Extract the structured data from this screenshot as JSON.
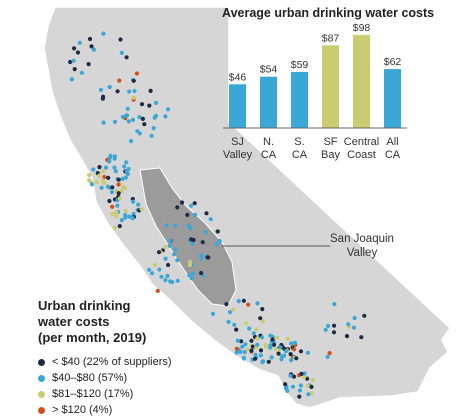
{
  "map": {
    "region": "California",
    "callout_lines": [
      "San Joaquin",
      "Valley"
    ]
  },
  "legend": {
    "title_lines": [
      "Urban drinking",
      "water costs",
      "(per month, 2019)"
    ],
    "items": [
      {
        "label": "< $40 (22% of suppliers)",
        "color": "#1f2a44"
      },
      {
        "label": "$40–$80 (57%)",
        "color": "#3aa7d6"
      },
      {
        "label": "$81–$120 (17%)",
        "color": "#c9cc6f"
      },
      {
        "label": "> $120 (4%)",
        "color": "#cf4f1f"
      }
    ]
  },
  "chart_data": {
    "type": "bar",
    "title": "Average urban drinking water costs",
    "categories": [
      [
        "SJ",
        "Valley"
      ],
      [
        "N.",
        "CA"
      ],
      [
        "S.",
        "CA"
      ],
      [
        "SF",
        "Bay"
      ],
      [
        "Central",
        "Coast"
      ],
      [
        "All",
        "CA"
      ]
    ],
    "values": [
      46,
      54,
      59,
      87,
      98,
      62
    ],
    "value_labels": [
      "$46",
      "$54",
      "$59",
      "$87",
      "$98",
      "$62"
    ],
    "bar_colors": [
      "#3aa7d6",
      "#3aa7d6",
      "#3aa7d6",
      "#c9cc6f",
      "#c9cc6f",
      "#3aa7d6"
    ],
    "ylim": [
      0,
      100
    ],
    "xlabel": "",
    "ylabel": "",
    "grid": false
  },
  "colors": {
    "state_fill": "#d6d6d6",
    "valley_fill": "#9b9b9b",
    "dark": "#1f2a44",
    "blue": "#3aa7d6",
    "olive": "#c9cc6f",
    "orange": "#cf4f1f"
  }
}
